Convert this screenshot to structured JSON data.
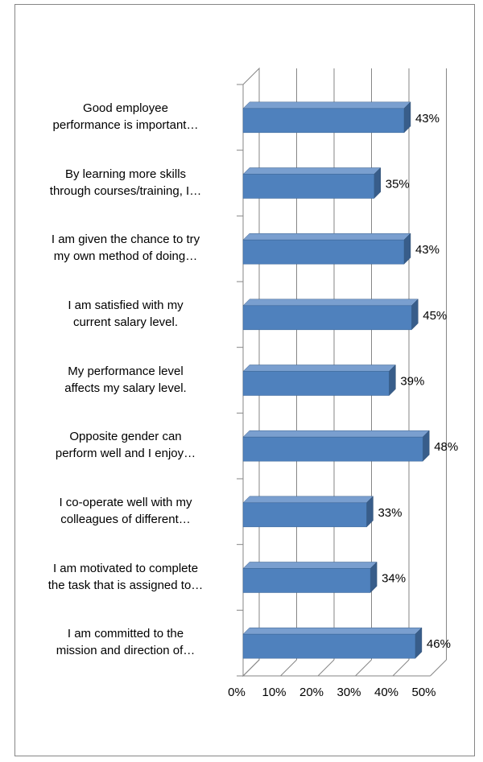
{
  "chart_data": {
    "type": "bar3d_horizontal",
    "categories": [
      "Good employee\nperformance is important…",
      "By learning more skills\nthrough courses/training, I…",
      "I am given the chance to try\nmy own method of doing…",
      "I am satisfied with my\ncurrent salary level.",
      "My performance level\naffects my salary level.",
      "Opposite gender can\nperform well and I enjoy…",
      "I co-operate well with my\ncolleagues of different…",
      "I am motivated to complete\nthe task that is assigned to…",
      "I am committed to the\nmission and direction of…"
    ],
    "values": [
      43,
      35,
      43,
      45,
      39,
      48,
      33,
      34,
      46
    ],
    "value_labels": [
      "43%",
      "35%",
      "43%",
      "45%",
      "39%",
      "48%",
      "33%",
      "34%",
      "46%"
    ],
    "color": "#4f81bd",
    "xlim": [
      0,
      50
    ],
    "xticks": [
      {
        "value": 0,
        "label": "0%"
      },
      {
        "value": 10,
        "label": "10%"
      },
      {
        "value": 20,
        "label": "20%"
      },
      {
        "value": 30,
        "label": "30%"
      },
      {
        "value": 40,
        "label": "40%"
      },
      {
        "value": 50,
        "label": "50%"
      }
    ],
    "grid": true
  }
}
